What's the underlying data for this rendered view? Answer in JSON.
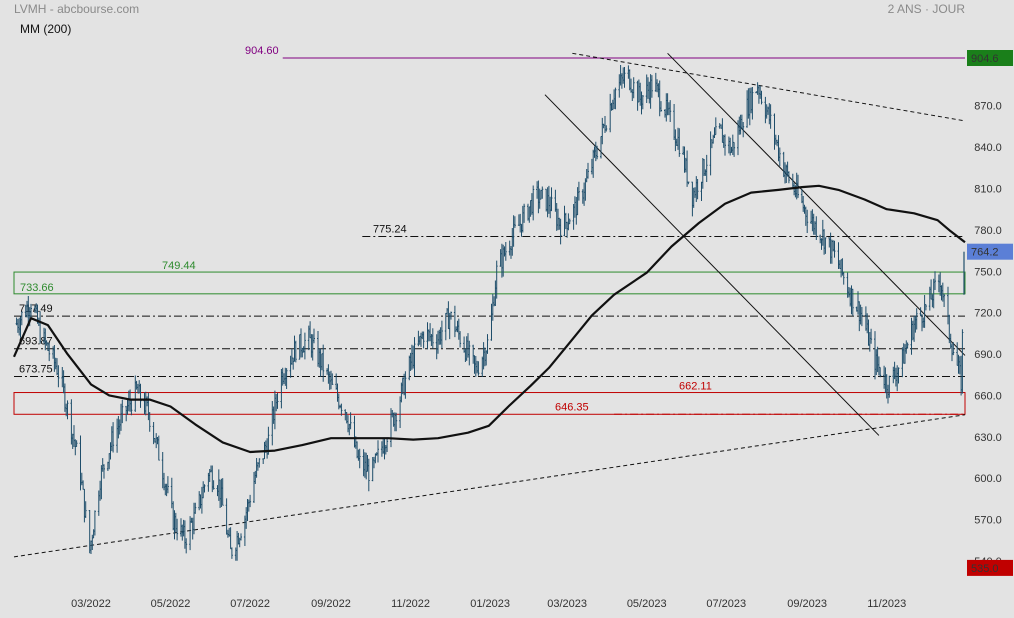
{
  "header": {
    "title": "LVMH - abcbourse.com",
    "period": "2 ANS · JOUR",
    "indicator": "MM (200)"
  },
  "colors": {
    "background": "#e3e3e3",
    "price_bars": "#1f4e6b",
    "moving_average": "#111111",
    "resistance_high": "#800080",
    "support_zone": "#c00000",
    "pivot_zone": "#2e8b2e",
    "last_price_badge": "#5b7fd6",
    "high_badge": "#1a7f1a",
    "low_badge": "#c00000"
  },
  "chart_data": {
    "type": "line",
    "title": "LVMH - abcbourse.com",
    "subtitle": "2 ANS · JOUR",
    "xlabel": "",
    "ylabel": "",
    "ylim": [
      528,
      912
    ],
    "xlim": [
      "2022-01-01",
      "2023-12-31"
    ],
    "grid": false,
    "x_ticks": [
      {
        "date": "2022-03-01",
        "label": "03/2022"
      },
      {
        "date": "2022-05-01",
        "label": "05/2022"
      },
      {
        "date": "2022-07-01",
        "label": "07/2022"
      },
      {
        "date": "2022-09-01",
        "label": "09/2022"
      },
      {
        "date": "2022-11-01",
        "label": "11/2022"
      },
      {
        "date": "2023-01-01",
        "label": "01/2023"
      },
      {
        "date": "2023-03-01",
        "label": "03/2023"
      },
      {
        "date": "2023-05-01",
        "label": "05/2023"
      },
      {
        "date": "2023-07-01",
        "label": "07/2023"
      },
      {
        "date": "2023-09-01",
        "label": "09/2023"
      },
      {
        "date": "2023-11-01",
        "label": "11/2023"
      }
    ],
    "y_ticks": [
      {
        "value": 870,
        "label": "870.0"
      },
      {
        "value": 840,
        "label": "840.0"
      },
      {
        "value": 810,
        "label": "810.0"
      },
      {
        "value": 780,
        "label": "780.0"
      },
      {
        "value": 750,
        "label": "750.0"
      },
      {
        "value": 720,
        "label": "720.0"
      },
      {
        "value": 690,
        "label": "690.0"
      },
      {
        "value": 660,
        "label": "660.0"
      },
      {
        "value": 630,
        "label": "630.0"
      },
      {
        "value": 600,
        "label": "600.0"
      },
      {
        "value": 570,
        "label": "570.0"
      },
      {
        "value": 540,
        "label": "540.0"
      }
    ],
    "badges": [
      {
        "value": 904.6,
        "label": "904.6",
        "kind": "high"
      },
      {
        "value": 764.2,
        "label": "764.2",
        "kind": "last"
      },
      {
        "value": 535.0,
        "label": "535.0",
        "kind": "low"
      }
    ],
    "levels": [
      {
        "value": 904.6,
        "label": "904.60",
        "style": "solid",
        "color": "#800080",
        "from": "2022-07-26",
        "to": "2023-12-31"
      },
      {
        "value": 775.24,
        "label": "775.24",
        "style": "dashdot",
        "color": "#111111",
        "from": "2022-09-25",
        "to": "2023-12-31"
      },
      {
        "value": 717.49,
        "label": "717.49",
        "style": "dashdot",
        "color": "#111111",
        "from": "2022-01-01",
        "to": "2023-12-31"
      },
      {
        "value": 693.87,
        "label": "693.87",
        "style": "dashdot",
        "color": "#111111",
        "from": "2022-01-01",
        "to": "2023-12-31"
      },
      {
        "value": 673.75,
        "label": "673.75",
        "style": "dashdot",
        "color": "#111111",
        "from": "2022-01-01",
        "to": "2023-12-31"
      },
      {
        "value": 646.35,
        "label": "646.35",
        "style": "dashdot",
        "color": "#c00000",
        "from": "2023-04-06",
        "to": "2023-12-31"
      }
    ],
    "zones": [
      {
        "top": 749.44,
        "bottom": 733.66,
        "top_label": "749.44",
        "bottom_label": "733.66",
        "color": "#2e8b2e"
      },
      {
        "top": 662.11,
        "bottom": 646.35,
        "top_label": "662.11",
        "bottom_label": "",
        "color": "#c00000"
      }
    ],
    "trendlines": [
      {
        "name": "support",
        "style": "dashed",
        "points": [
          [
            "2022-01-01",
            543
          ],
          [
            "2023-12-31",
            646
          ]
        ]
      },
      {
        "name": "top",
        "style": "dashed",
        "points": [
          [
            "2023-03-05",
            908
          ],
          [
            "2023-12-31",
            859
          ]
        ]
      },
      {
        "name": "channel-upper",
        "style": "solid",
        "points": [
          [
            "2023-05-17",
            908
          ],
          [
            "2023-12-31",
            689
          ]
        ]
      },
      {
        "name": "channel-lower",
        "style": "solid",
        "points": [
          [
            "2023-02-12",
            878
          ],
          [
            "2023-10-26",
            631
          ]
        ]
      }
    ],
    "moving_average": {
      "name": "MM (200)",
      "points": [
        [
          "2022-01-01",
          688
        ],
        [
          "2022-01-14",
          716
        ],
        [
          "2022-01-27",
          711
        ],
        [
          "2022-02-11",
          690
        ],
        [
          "2022-03-01",
          668
        ],
        [
          "2022-03-15",
          660
        ],
        [
          "2022-03-31",
          657
        ],
        [
          "2022-04-15",
          657
        ],
        [
          "2022-05-01",
          652
        ],
        [
          "2022-05-20",
          639
        ],
        [
          "2022-06-10",
          626
        ],
        [
          "2022-07-01",
          619
        ],
        [
          "2022-07-20",
          620
        ],
        [
          "2022-08-10",
          624
        ],
        [
          "2022-09-01",
          629
        ],
        [
          "2022-09-25",
          629
        ],
        [
          "2022-10-15",
          629
        ],
        [
          "2022-11-03",
          628
        ],
        [
          "2022-11-22",
          629
        ],
        [
          "2022-12-15",
          633
        ],
        [
          "2022-12-31",
          638
        ],
        [
          "2023-01-15",
          652
        ],
        [
          "2023-02-01",
          667
        ],
        [
          "2023-02-15",
          680
        ],
        [
          "2023-03-01",
          696
        ],
        [
          "2023-03-20",
          718
        ],
        [
          "2023-04-06",
          733
        ],
        [
          "2023-05-01",
          749
        ],
        [
          "2023-05-20",
          768
        ],
        [
          "2023-06-10",
          785
        ],
        [
          "2023-06-30",
          799
        ],
        [
          "2023-07-20",
          807
        ],
        [
          "2023-08-10",
          809
        ],
        [
          "2023-08-28",
          811
        ],
        [
          "2023-09-10",
          812
        ],
        [
          "2023-09-25",
          809
        ],
        [
          "2023-10-15",
          802
        ],
        [
          "2023-11-01",
          795
        ],
        [
          "2023-11-22",
          792
        ],
        [
          "2023-12-10",
          787
        ],
        [
          "2023-12-20",
          779
        ],
        [
          "2023-12-31",
          771
        ]
      ]
    },
    "price": {
      "name": "LVMH",
      "last": 764.2,
      "points": [
        [
          "2022-01-03",
          712
        ],
        [
          "2022-01-14",
          728
        ],
        [
          "2022-01-22",
          703
        ],
        [
          "2022-02-03",
          680
        ],
        [
          "2022-02-10",
          655
        ],
        [
          "2022-02-20",
          610
        ],
        [
          "2022-02-28",
          548
        ],
        [
          "2022-03-08",
          600
        ],
        [
          "2022-03-18",
          630
        ],
        [
          "2022-03-28",
          650
        ],
        [
          "2022-04-05",
          663
        ],
        [
          "2022-04-14",
          648
        ],
        [
          "2022-04-24",
          610
        ],
        [
          "2022-05-03",
          570
        ],
        [
          "2022-05-12",
          556
        ],
        [
          "2022-05-21",
          575
        ],
        [
          "2022-05-30",
          605
        ],
        [
          "2022-06-07",
          596
        ],
        [
          "2022-06-16",
          546
        ],
        [
          "2022-06-26",
          568
        ],
        [
          "2022-07-05",
          602
        ],
        [
          "2022-07-15",
          628
        ],
        [
          "2022-07-25",
          675
        ],
        [
          "2022-08-05",
          694
        ],
        [
          "2022-08-15",
          701
        ],
        [
          "2022-08-25",
          683
        ],
        [
          "2022-09-02",
          665
        ],
        [
          "2022-09-12",
          650
        ],
        [
          "2022-09-22",
          612
        ],
        [
          "2022-10-02",
          603
        ],
        [
          "2022-10-12",
          628
        ],
        [
          "2022-10-22",
          652
        ],
        [
          "2022-11-01",
          684
        ],
        [
          "2022-11-11",
          705
        ],
        [
          "2022-11-21",
          700
        ],
        [
          "2022-12-01",
          718
        ],
        [
          "2022-12-11",
          698
        ],
        [
          "2022-12-21",
          678
        ],
        [
          "2022-12-31",
          700
        ],
        [
          "2023-01-06",
          750
        ],
        [
          "2023-01-16",
          772
        ],
        [
          "2023-01-26",
          788
        ],
        [
          "2023-02-05",
          805
        ],
        [
          "2023-02-15",
          800
        ],
        [
          "2023-02-25",
          782
        ],
        [
          "2023-03-07",
          795
        ],
        [
          "2023-03-17",
          818
        ],
        [
          "2023-03-27",
          848
        ],
        [
          "2023-04-06",
          880
        ],
        [
          "2023-04-16",
          893
        ],
        [
          "2023-04-26",
          875
        ],
        [
          "2023-05-06",
          886
        ],
        [
          "2023-05-16",
          866
        ],
        [
          "2023-05-26",
          843
        ],
        [
          "2023-06-05",
          805
        ],
        [
          "2023-06-15",
          828
        ],
        [
          "2023-06-25",
          852
        ],
        [
          "2023-07-05",
          838
        ],
        [
          "2023-07-15",
          865
        ],
        [
          "2023-07-25",
          885
        ],
        [
          "2023-08-04",
          858
        ],
        [
          "2023-08-14",
          825
        ],
        [
          "2023-08-24",
          806
        ],
        [
          "2023-09-03",
          788
        ],
        [
          "2023-09-13",
          776
        ],
        [
          "2023-09-23",
          760
        ],
        [
          "2023-10-03",
          736
        ],
        [
          "2023-10-13",
          718
        ],
        [
          "2023-10-23",
          685
        ],
        [
          "2023-11-02",
          668
        ],
        [
          "2023-11-12",
          683
        ],
        [
          "2023-11-22",
          712
        ],
        [
          "2023-12-02",
          725
        ],
        [
          "2023-12-12",
          745
        ],
        [
          "2023-12-19",
          705
        ],
        [
          "2023-12-24",
          685
        ],
        [
          "2023-12-28",
          670
        ],
        [
          "2023-12-31",
          764.2
        ]
      ]
    }
  }
}
